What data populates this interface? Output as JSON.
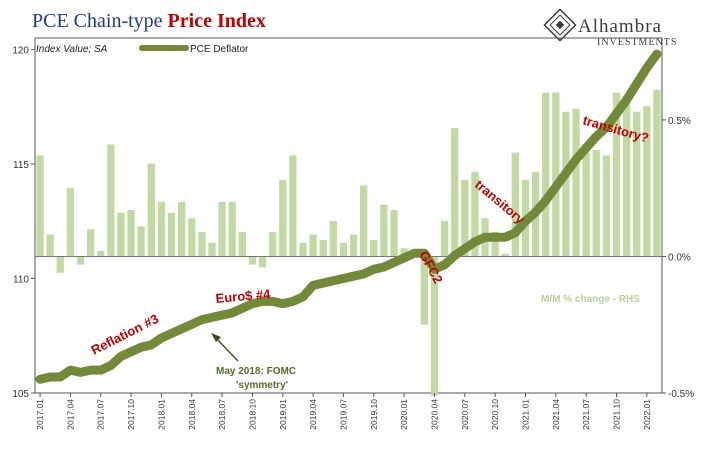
{
  "title": {
    "part1": "PCE Chain-type ",
    "part2": "Price Index"
  },
  "logo": {
    "name": "Alhambra",
    "sub": "INVESTMENTS"
  },
  "legend": {
    "note": "Index Value; SA",
    "series_label": "PCE Deflator"
  },
  "rhs_label": "M/M % change - RHS",
  "colors": {
    "line": "#73893a",
    "bars": "#c3d9a3",
    "title_blue": "#1f3a93",
    "accent_red": "#c00000"
  },
  "annotations": {
    "reflation": "Reflation #3",
    "euro": "Euro$ #4",
    "may_2018_line1": "May 2018: FOMC",
    "may_2018_line2": "'symmetry'",
    "gfc2": "GFC2",
    "transitory": "transitory",
    "transitory_q": "transitory?"
  },
  "chart_data": {
    "type": "line",
    "x": [
      "2017.01",
      "2017.02",
      "2017.03",
      "2017.04",
      "2017.05",
      "2017.06",
      "2017.07",
      "2017.08",
      "2017.09",
      "2017.10",
      "2017.11",
      "2017.12",
      "2018.01",
      "2018.02",
      "2018.03",
      "2018.04",
      "2018.05",
      "2018.06",
      "2018.07",
      "2018.08",
      "2018.09",
      "2018.10",
      "2018.11",
      "2018.12",
      "2019.01",
      "2019.02",
      "2019.03",
      "2019.04",
      "2019.05",
      "2019.06",
      "2019.07",
      "2019.08",
      "2019.09",
      "2019.10",
      "2019.11",
      "2019.12",
      "2020.01",
      "2020.02",
      "2020.03",
      "2020.04",
      "2020.05",
      "2020.06",
      "2020.07",
      "2020.08",
      "2020.09",
      "2020.10",
      "2020.11",
      "2020.12",
      "2021.01",
      "2021.02",
      "2021.03",
      "2021.04",
      "2021.05",
      "2021.06",
      "2021.07",
      "2021.08",
      "2021.09",
      "2021.10",
      "2021.11",
      "2021.12",
      "2022.01",
      "2022.02"
    ],
    "x_tick_labels": [
      "2017.01",
      "2017.04",
      "2017.07",
      "2017.10",
      "2018.01",
      "2018.04",
      "2018.07",
      "2018.10",
      "2019.01",
      "2019.04",
      "2019.07",
      "2019.10",
      "2020.01",
      "2020.04",
      "2020.07",
      "2020.10",
      "2021.01",
      "2021.04",
      "2021.07",
      "2021.10",
      "2022.01"
    ],
    "series": [
      {
        "name": "PCE Deflator",
        "axis": "left",
        "values": [
          105.6,
          105.7,
          105.7,
          106.0,
          105.9,
          106.0,
          106.0,
          106.2,
          106.6,
          106.8,
          107.0,
          107.1,
          107.4,
          107.6,
          107.8,
          108.0,
          108.2,
          108.3,
          108.4,
          108.5,
          108.7,
          108.9,
          109.0,
          109.0,
          108.9,
          109.0,
          109.2,
          109.7,
          109.8,
          109.9,
          110.0,
          110.1,
          110.2,
          110.4,
          110.5,
          110.7,
          110.9,
          111.1,
          111.1,
          110.4,
          110.6,
          111.0,
          111.3,
          111.6,
          111.8,
          111.8,
          111.8,
          112.0,
          112.5,
          112.9,
          113.4,
          114.0,
          114.6,
          115.2,
          115.7,
          116.2,
          116.6,
          117.2,
          117.8,
          118.5,
          119.2,
          119.8
        ]
      },
      {
        "name": "M/M % change - RHS",
        "type": "bar",
        "axis": "right",
        "values": [
          0.37,
          0.08,
          -0.06,
          0.25,
          -0.03,
          0.1,
          0.02,
          0.41,
          0.16,
          0.17,
          0.11,
          0.34,
          0.2,
          0.16,
          0.2,
          0.14,
          0.09,
          0.05,
          0.2,
          0.2,
          0.09,
          -0.03,
          -0.04,
          0.09,
          0.28,
          0.37,
          0.05,
          0.08,
          0.06,
          0.13,
          0.05,
          0.08,
          0.26,
          0.06,
          0.19,
          0.17,
          0.03,
          0.0,
          -0.25,
          -0.51,
          0.13,
          0.47,
          0.28,
          0.31,
          0.14,
          0.09,
          0.01,
          0.38,
          0.28,
          0.31,
          0.6,
          0.6,
          0.53,
          0.54,
          0.41,
          0.39,
          0.37,
          0.6,
          0.59,
          0.53,
          0.55,
          0.61
        ]
      }
    ],
    "y_left": {
      "ticks": [
        105,
        110,
        115,
        120
      ],
      "ylim": [
        105,
        120.5
      ]
    },
    "y_right": {
      "ticks": [
        "-0.5%",
        "0.0%",
        "0.5%"
      ],
      "ylim": [
        -0.5,
        0.8
      ]
    }
  }
}
